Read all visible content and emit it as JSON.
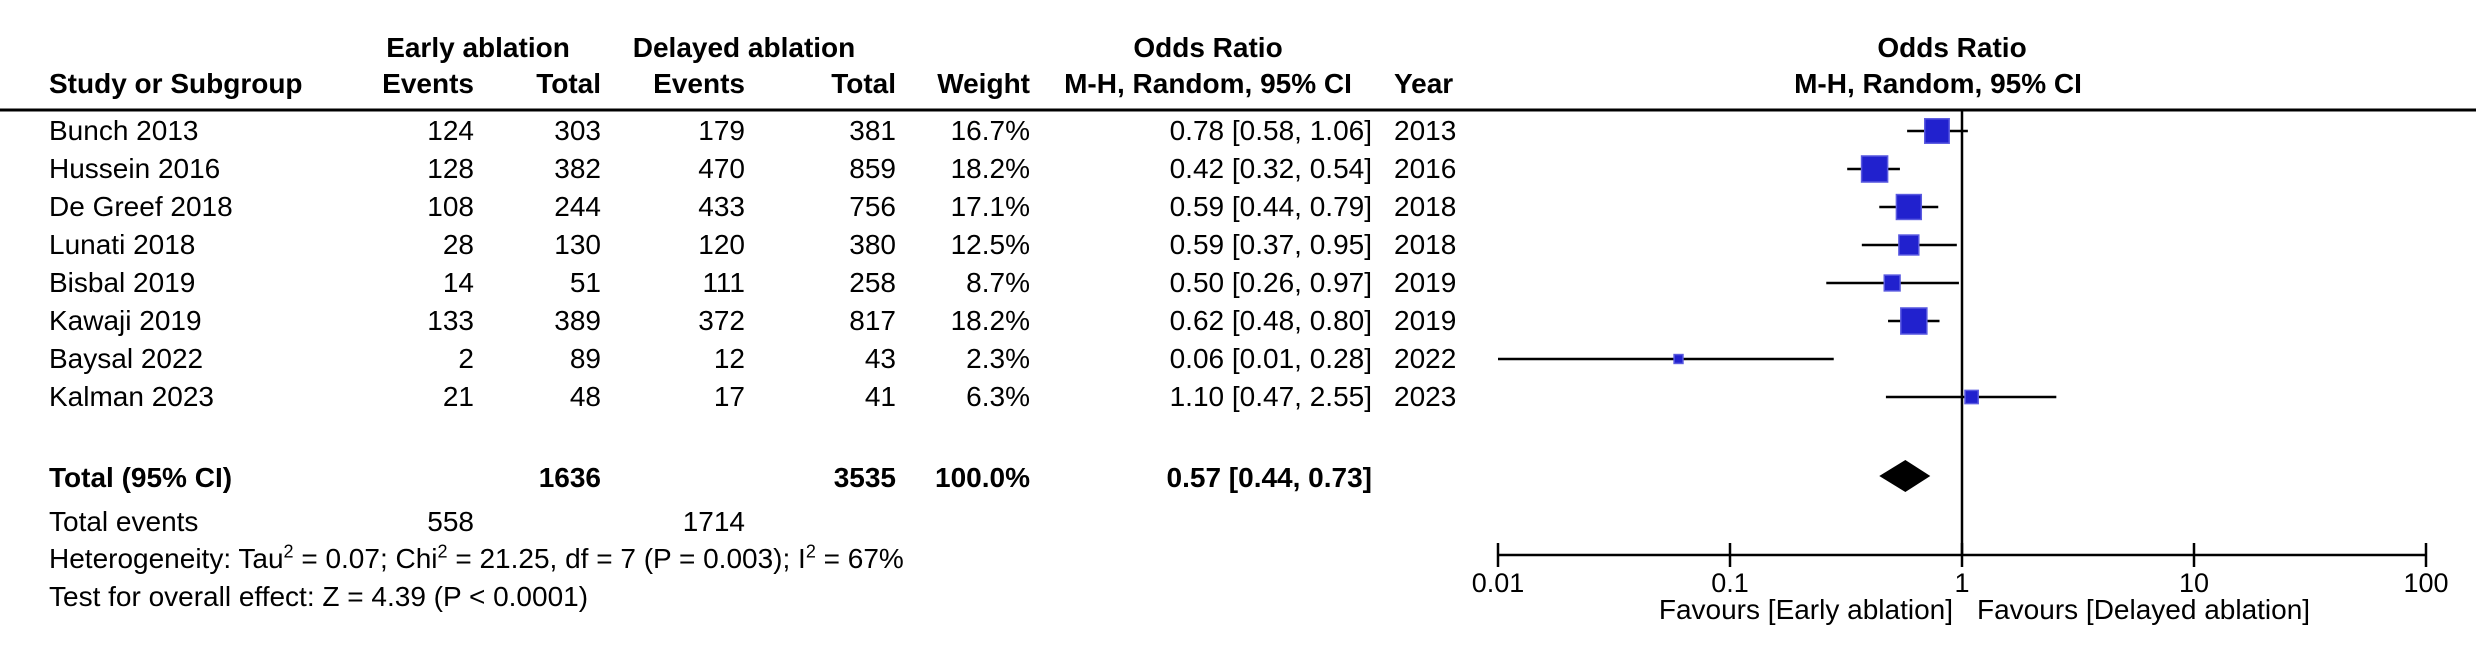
{
  "headers": {
    "group_left": "Early ablation",
    "group_right": "Delayed ablation",
    "or_title_mid": "Odds Ratio",
    "or_title_right": "Odds Ratio",
    "study": "Study or Subgroup",
    "events_left": "Events",
    "total_left": "Total",
    "events_right": "Events",
    "total_right": "Total",
    "weight": "Weight",
    "method_mid": "M-H, Random, 95% CI",
    "year": "Year",
    "method_right": "M-H, Random, 95% CI"
  },
  "totals": {
    "label": "Total (95% CI)",
    "early_total": "1636",
    "delayed_total": "3535",
    "weight": "100.0%",
    "or_ci": "0.57 [0.44, 0.73]"
  },
  "total_events": {
    "label": "Total events",
    "early_events": "558",
    "delayed_events": "1714"
  },
  "footnotes": {
    "het_parts": [
      "Heterogeneity: Tau",
      "2",
      " = 0.07; Chi",
      "2",
      " = 21.25, df = 7 (P = 0.003); I",
      "2",
      " = 67%"
    ],
    "overall_effect": "Test for overall effect: Z = 4.39 (P < 0.0001)"
  },
  "chart_data": {
    "type": "forest",
    "effect_measure": "Odds Ratio",
    "method": "M-H, Random, 95% CI",
    "group_experimental": "Early ablation",
    "group_control": "Delayed ablation",
    "x_scale": "log10",
    "x_range": [
      0.01,
      100
    ],
    "studies": [
      {
        "name": "Bunch 2013",
        "e_events": "124",
        "e_total": "303",
        "c_events": "179",
        "c_total": "381",
        "weight": "16.7%",
        "weight_pct": 16.7,
        "or": 0.78,
        "lo": 0.58,
        "hi": 1.06,
        "or_ci": "0.78 [0.58, 1.06]",
        "year": "2013"
      },
      {
        "name": "Hussein 2016",
        "e_events": "128",
        "e_total": "382",
        "c_events": "470",
        "c_total": "859",
        "weight": "18.2%",
        "weight_pct": 18.2,
        "or": 0.42,
        "lo": 0.32,
        "hi": 0.54,
        "or_ci": "0.42 [0.32, 0.54]",
        "year": "2016"
      },
      {
        "name": "De Greef 2018",
        "e_events": "108",
        "e_total": "244",
        "c_events": "433",
        "c_total": "756",
        "weight": "17.1%",
        "weight_pct": 17.1,
        "or": 0.59,
        "lo": 0.44,
        "hi": 0.79,
        "or_ci": "0.59 [0.44, 0.79]",
        "year": "2018"
      },
      {
        "name": "Lunati 2018",
        "e_events": "28",
        "e_total": "130",
        "c_events": "120",
        "c_total": "380",
        "weight": "12.5%",
        "weight_pct": 12.5,
        "or": 0.59,
        "lo": 0.37,
        "hi": 0.95,
        "or_ci": "0.59 [0.37, 0.95]",
        "year": "2018"
      },
      {
        "name": "Bisbal 2019",
        "e_events": "14",
        "e_total": "51",
        "c_events": "111",
        "c_total": "258",
        "weight": "8.7%",
        "weight_pct": 8.7,
        "or": 0.5,
        "lo": 0.26,
        "hi": 0.97,
        "or_ci": "0.50 [0.26, 0.97]",
        "year": "2019"
      },
      {
        "name": "Kawaji 2019",
        "e_events": "133",
        "e_total": "389",
        "c_events": "372",
        "c_total": "817",
        "weight": "18.2%",
        "weight_pct": 18.2,
        "or": 0.62,
        "lo": 0.48,
        "hi": 0.8,
        "or_ci": "0.62 [0.48, 0.80]",
        "year": "2019"
      },
      {
        "name": "Baysal 2022",
        "e_events": "2",
        "e_total": "89",
        "c_events": "12",
        "c_total": "43",
        "weight": "2.3%",
        "weight_pct": 2.3,
        "or": 0.06,
        "lo": 0.01,
        "hi": 0.28,
        "or_ci": "0.06 [0.01, 0.28]",
        "year": "2022"
      },
      {
        "name": "Kalman 2023",
        "e_events": "21",
        "e_total": "48",
        "c_events": "17",
        "c_total": "41",
        "weight": "6.3%",
        "weight_pct": 6.3,
        "or": 1.1,
        "lo": 0.47,
        "hi": 2.55,
        "or_ci": "1.10 [0.47, 2.55]",
        "year": "2023"
      }
    ],
    "total": {
      "or": 0.57,
      "lo": 0.44,
      "hi": 0.73
    },
    "axis": {
      "ticks": [
        0.01,
        0.1,
        1,
        10,
        100
      ],
      "tick_labels": [
        "0.01",
        "0.1",
        "1",
        "10",
        "100"
      ],
      "favours_left": "Favours [Early ablation]",
      "favours_right": "Favours [Delayed ablation]"
    },
    "colors": {
      "marker_blue": "#2121CE",
      "line_black": "#000000"
    }
  }
}
